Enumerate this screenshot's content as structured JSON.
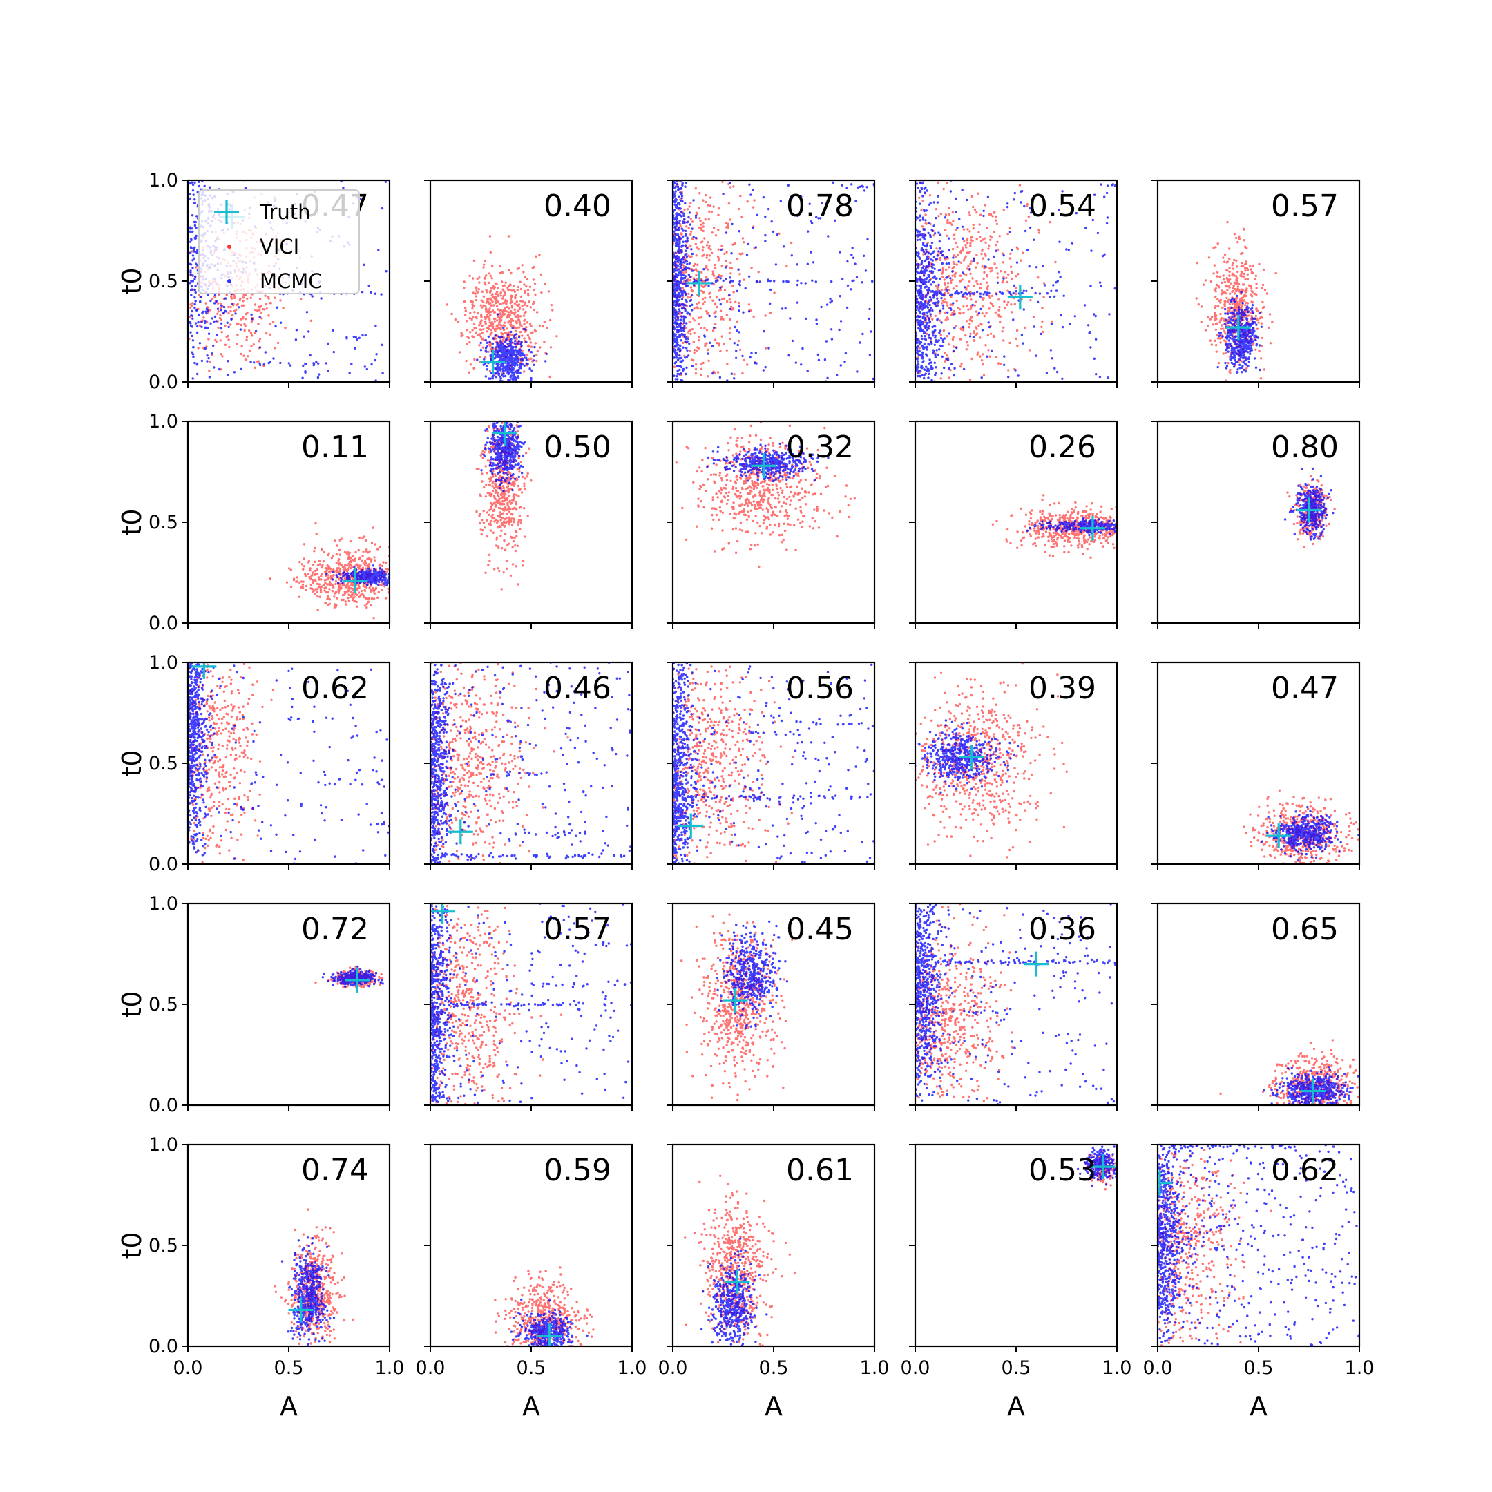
{
  "chart_data": {
    "type": "scatter",
    "grid": {
      "rows": 5,
      "cols": 5
    },
    "xlabel": "A",
    "ylabel": "t0",
    "xlim": [
      0,
      1
    ],
    "ylim": [
      0,
      1
    ],
    "x_tick_labels": [
      "0.0",
      "0.5",
      "1.0"
    ],
    "y_tick_labels": [
      "0.0",
      "0.5",
      "1.0"
    ],
    "show_grid": false,
    "legend": {
      "placement": "top-left of first panel",
      "entries": [
        {
          "label": "Truth",
          "marker": "plus",
          "color": "#17becf"
        },
        {
          "label": "VICI",
          "marker": "dot",
          "color": "#ff0000"
        },
        {
          "label": "MCMC",
          "marker": "dot",
          "color": "#0000ff"
        }
      ]
    },
    "colors": {
      "vici": "#ff0000",
      "mcmc": "#0000ff",
      "truth": "#17becf"
    },
    "panels": [
      {
        "value": "0.47",
        "truth": [
          0.22,
          0.82
        ],
        "vici": {
          "cx": 0.25,
          "cy": 0.45,
          "sx": 0.13,
          "sy": 0.2,
          "count": 350,
          "cut_left": 0
        },
        "mcmc": {
          "type": "spikes",
          "count": 130,
          "clusters": [
            {
              "cx": 0.1,
              "cy": 0.6,
              "sx": 0.09,
              "sy": 0.3,
              "count": 350
            }
          ],
          "spikes": [
            {
              "y": 0.44,
              "x1": 0.45,
              "x2": 1.0,
              "n": 14
            },
            {
              "y": 0.09,
              "x1": 0.35,
              "x2": 0.72,
              "n": 16
            },
            {
              "y": 0.22,
              "x1": 0.78,
              "x2": 0.86,
              "n": 5
            }
          ]
        }
      },
      {
        "value": "0.40",
        "truth": [
          0.31,
          0.1
        ],
        "vici": {
          "cx": 0.36,
          "cy": 0.32,
          "sx": 0.1,
          "sy": 0.13,
          "count": 550,
          "cut_left": 0
        },
        "mcmc": {
          "type": "blob",
          "cx": 0.38,
          "cy": 0.11,
          "sx": 0.05,
          "sy": 0.06,
          "count": 450
        }
      },
      {
        "value": "0.78",
        "truth": [
          0.13,
          0.49
        ],
        "vici": {
          "cx": 0.1,
          "cy": 0.5,
          "sx": 0.15,
          "sy": 0.3,
          "count": 600,
          "cut_left": 0
        },
        "mcmc": {
          "type": "spikes",
          "count": 160,
          "clusters": [
            {
              "cx": 0.02,
              "cy": 0.5,
              "sx": 0.04,
              "sy": 0.35,
              "count": 700
            }
          ],
          "spikes": [
            {
              "y": 0.5,
              "x1": 0.1,
              "x2": 1.0,
              "n": 40
            },
            {
              "y": 0.97,
              "x1": 0.85,
              "x2": 1.0,
              "n": 8
            }
          ]
        }
      },
      {
        "value": "0.54",
        "truth": [
          0.52,
          0.42
        ],
        "vici": {
          "cx": 0.22,
          "cy": 0.48,
          "sx": 0.18,
          "sy": 0.25,
          "count": 600,
          "cut_left": 0
        },
        "mcmc": {
          "type": "spikes",
          "count": 140,
          "clusters": [
            {
              "cx": 0.05,
              "cy": 0.4,
              "sx": 0.07,
              "sy": 0.28,
              "count": 600
            }
          ],
          "spikes": [
            {
              "y": 0.44,
              "x1": 0.1,
              "x2": 0.7,
              "n": 60
            },
            {
              "y": 0.98,
              "x1": 0.88,
              "x2": 1.0,
              "n": 6
            }
          ]
        }
      },
      {
        "value": "0.57",
        "truth": [
          0.4,
          0.27
        ],
        "vici": {
          "cx": 0.39,
          "cy": 0.38,
          "sx": 0.07,
          "sy": 0.15,
          "count": 500,
          "cut_left": 0
        },
        "mcmc": {
          "type": "blob",
          "cx": 0.41,
          "cy": 0.22,
          "sx": 0.04,
          "sy": 0.08,
          "count": 450
        }
      },
      {
        "value": "0.11",
        "truth": [
          0.83,
          0.21
        ],
        "vici": {
          "cx": 0.8,
          "cy": 0.23,
          "sx": 0.12,
          "sy": 0.07,
          "count": 550,
          "cut_left": 0
        },
        "mcmc": {
          "type": "blob",
          "cx": 0.9,
          "cy": 0.23,
          "sx": 0.07,
          "sy": 0.018,
          "count": 300
        }
      },
      {
        "value": "0.50",
        "truth": [
          0.37,
          0.94
        ],
        "vici": {
          "cx": 0.36,
          "cy": 0.68,
          "sx": 0.05,
          "sy": 0.17,
          "count": 500,
          "cut_left": 0
        },
        "mcmc": {
          "type": "blob",
          "cx": 0.37,
          "cy": 0.87,
          "sx": 0.04,
          "sy": 0.08,
          "count": 450
        }
      },
      {
        "value": "0.32",
        "truth": [
          0.45,
          0.78
        ],
        "vici": {
          "cx": 0.45,
          "cy": 0.67,
          "sx": 0.15,
          "sy": 0.13,
          "count": 600,
          "cut_left": 0
        },
        "mcmc": {
          "type": "blob",
          "cx": 0.47,
          "cy": 0.79,
          "sx": 0.1,
          "sy": 0.035,
          "count": 450
        }
      },
      {
        "value": "0.26",
        "truth": [
          0.88,
          0.47
        ],
        "vici": {
          "cx": 0.8,
          "cy": 0.47,
          "sx": 0.14,
          "sy": 0.05,
          "count": 500,
          "cut_left": 0
        },
        "mcmc": {
          "type": "blob",
          "cx": 0.85,
          "cy": 0.48,
          "sx": 0.1,
          "sy": 0.015,
          "count": 300
        }
      },
      {
        "value": "0.80",
        "truth": [
          0.75,
          0.56
        ],
        "vici": {
          "cx": 0.76,
          "cy": 0.55,
          "sx": 0.04,
          "sy": 0.07,
          "count": 300,
          "cut_left": 0
        },
        "mcmc": {
          "type": "blob",
          "cx": 0.76,
          "cy": 0.56,
          "sx": 0.035,
          "sy": 0.06,
          "count": 350
        }
      },
      {
        "value": "0.62",
        "truth": [
          0.08,
          0.98
        ],
        "vici": {
          "cx": 0.13,
          "cy": 0.55,
          "sx": 0.1,
          "sy": 0.3,
          "count": 450,
          "cut_left": 0
        },
        "mcmc": {
          "type": "spikes",
          "count": 100,
          "clusters": [
            {
              "cx": 0.04,
              "cy": 0.65,
              "sx": 0.05,
              "sy": 0.3,
              "count": 650
            }
          ],
          "spikes": [
            {
              "y": 0.4,
              "x1": 0.3,
              "x2": 1.0,
              "n": 12
            },
            {
              "y": 0.72,
              "x1": 0.5,
              "x2": 0.85,
              "n": 8
            },
            {
              "y": 0.2,
              "x1": 0.85,
              "x2": 1.0,
              "n": 6
            }
          ]
        }
      },
      {
        "value": "0.46",
        "truth": [
          0.15,
          0.16
        ],
        "vici": {
          "cx": 0.17,
          "cy": 0.5,
          "sx": 0.15,
          "sy": 0.28,
          "count": 600,
          "cut_left": 0
        },
        "mcmc": {
          "type": "spikes",
          "count": 160,
          "clusters": [
            {
              "cx": 0.03,
              "cy": 0.5,
              "sx": 0.05,
              "sy": 0.35,
              "count": 650
            }
          ],
          "spikes": [
            {
              "y": 0.04,
              "x1": 0.05,
              "x2": 1.0,
              "n": 50
            },
            {
              "y": 0.15,
              "x1": 0.3,
              "x2": 0.8,
              "n": 18
            },
            {
              "y": 0.45,
              "x1": 0.3,
              "x2": 0.65,
              "n": 14
            }
          ]
        }
      },
      {
        "value": "0.56",
        "truth": [
          0.09,
          0.19
        ],
        "vici": {
          "cx": 0.17,
          "cy": 0.5,
          "sx": 0.15,
          "sy": 0.28,
          "count": 600,
          "cut_left": 0
        },
        "mcmc": {
          "type": "spikes",
          "count": 160,
          "clusters": [
            {
              "cx": 0.03,
              "cy": 0.45,
              "sx": 0.05,
              "sy": 0.35,
              "count": 650
            }
          ],
          "spikes": [
            {
              "y": 0.33,
              "x1": 0.05,
              "x2": 1.0,
              "n": 60
            },
            {
              "y": 0.7,
              "x1": 0.3,
              "x2": 1.0,
              "n": 16
            },
            {
              "y": 0.65,
              "x1": 0.35,
              "x2": 0.6,
              "n": 10
            }
          ]
        }
      },
      {
        "value": "0.39",
        "truth": [
          0.28,
          0.53
        ],
        "vici": {
          "cx": 0.3,
          "cy": 0.5,
          "sx": 0.15,
          "sy": 0.18,
          "count": 600,
          "cut_left": 0
        },
        "mcmc": {
          "type": "blob",
          "cx": 0.22,
          "cy": 0.53,
          "sx": 0.09,
          "sy": 0.06,
          "count": 450
        }
      },
      {
        "value": "0.47",
        "truth": [
          0.6,
          0.14
        ],
        "vici": {
          "cx": 0.72,
          "cy": 0.14,
          "sx": 0.11,
          "sy": 0.08,
          "count": 500,
          "cut_left": 0
        },
        "mcmc": {
          "type": "blob",
          "cx": 0.73,
          "cy": 0.15,
          "sx": 0.07,
          "sy": 0.04,
          "count": 450
        }
      },
      {
        "value": "0.72",
        "truth": [
          0.84,
          0.62
        ],
        "vici": {
          "cx": 0.84,
          "cy": 0.63,
          "sx": 0.05,
          "sy": 0.02,
          "count": 300,
          "cut_left": 0
        },
        "mcmc": {
          "type": "blob",
          "cx": 0.83,
          "cy": 0.63,
          "sx": 0.05,
          "sy": 0.015,
          "count": 350
        }
      },
      {
        "value": "0.57",
        "truth": [
          0.06,
          0.96
        ],
        "vici": {
          "cx": 0.15,
          "cy": 0.5,
          "sx": 0.14,
          "sy": 0.28,
          "count": 600,
          "cut_left": 0
        },
        "mcmc": {
          "type": "spikes",
          "count": 150,
          "clusters": [
            {
              "cx": 0.03,
              "cy": 0.5,
              "sx": 0.05,
              "sy": 0.35,
              "count": 650
            }
          ],
          "spikes": [
            {
              "y": 0.5,
              "x1": 0.05,
              "x2": 1.0,
              "n": 60
            },
            {
              "y": 0.6,
              "x1": 0.55,
              "x2": 1.0,
              "n": 12
            },
            {
              "y": 0.8,
              "x1": 0.8,
              "x2": 1.0,
              "n": 6
            }
          ]
        }
      },
      {
        "value": "0.45",
        "truth": [
          0.31,
          0.52
        ],
        "vici": {
          "cx": 0.32,
          "cy": 0.5,
          "sx": 0.09,
          "sy": 0.17,
          "count": 600,
          "cut_left": 0
        },
        "mcmc": {
          "type": "blob",
          "cx": 0.38,
          "cy": 0.65,
          "sx": 0.06,
          "sy": 0.1,
          "count": 450
        }
      },
      {
        "value": "0.36",
        "truth": [
          0.6,
          0.7
        ],
        "vici": {
          "cx": 0.15,
          "cy": 0.42,
          "sx": 0.14,
          "sy": 0.22,
          "count": 600,
          "cut_left": 0
        },
        "mcmc": {
          "type": "spikes",
          "count": 150,
          "clusters": [
            {
              "cx": 0.04,
              "cy": 0.6,
              "sx": 0.06,
              "sy": 0.28,
              "count": 650
            }
          ],
          "spikes": [
            {
              "y": 0.71,
              "x1": 0.1,
              "x2": 1.0,
              "n": 70
            },
            {
              "y": 0.46,
              "x1": 0.1,
              "x2": 0.5,
              "n": 14
            }
          ]
        }
      },
      {
        "value": "0.65",
        "truth": [
          0.77,
          0.07
        ],
        "vici": {
          "cx": 0.77,
          "cy": 0.1,
          "sx": 0.1,
          "sy": 0.08,
          "count": 450,
          "cut_left": 0
        },
        "mcmc": {
          "type": "blob",
          "cx": 0.77,
          "cy": 0.07,
          "sx": 0.08,
          "sy": 0.04,
          "count": 450
        }
      },
      {
        "value": "0.74",
        "truth": [
          0.56,
          0.18
        ],
        "vici": {
          "cx": 0.63,
          "cy": 0.27,
          "sx": 0.06,
          "sy": 0.12,
          "count": 450,
          "cut_left": 0
        },
        "mcmc": {
          "type": "blob",
          "cx": 0.6,
          "cy": 0.25,
          "sx": 0.04,
          "sy": 0.1,
          "count": 450
        }
      },
      {
        "value": "0.59",
        "truth": [
          0.59,
          0.05
        ],
        "vici": {
          "cx": 0.57,
          "cy": 0.13,
          "sx": 0.09,
          "sy": 0.1,
          "count": 450,
          "cut_left": 0
        },
        "mcmc": {
          "type": "blob",
          "cx": 0.58,
          "cy": 0.07,
          "sx": 0.06,
          "sy": 0.05,
          "count": 400
        }
      },
      {
        "value": "0.61",
        "truth": [
          0.32,
          0.32
        ],
        "vici": {
          "cx": 0.31,
          "cy": 0.38,
          "sx": 0.08,
          "sy": 0.17,
          "count": 550,
          "cut_left": 0
        },
        "mcmc": {
          "type": "blob",
          "cx": 0.3,
          "cy": 0.2,
          "sx": 0.05,
          "sy": 0.11,
          "count": 450
        }
      },
      {
        "value": "0.53",
        "truth": [
          0.93,
          0.89
        ],
        "vici": {
          "cx": 0.93,
          "cy": 0.88,
          "sx": 0.04,
          "sy": 0.04,
          "count": 150,
          "cut_left": 0
        },
        "mcmc": {
          "type": "blob",
          "cx": 0.92,
          "cy": 0.9,
          "sx": 0.04,
          "sy": 0.04,
          "count": 250
        }
      },
      {
        "value": "0.62",
        "truth": [
          0.01,
          0.81
        ],
        "vici": {
          "cx": 0.12,
          "cy": 0.5,
          "sx": 0.14,
          "sy": 0.28,
          "count": 600,
          "cut_left": 0
        },
        "mcmc": {
          "type": "spikes",
          "count": 300,
          "clusters": [
            {
              "cx": 0.04,
              "cy": 0.55,
              "sx": 0.06,
              "sy": 0.3,
              "count": 650
            }
          ],
          "spikes": [
            {
              "y": 0.99,
              "x1": 0.05,
              "x2": 0.75,
              "n": 40
            }
          ]
        }
      }
    ]
  }
}
